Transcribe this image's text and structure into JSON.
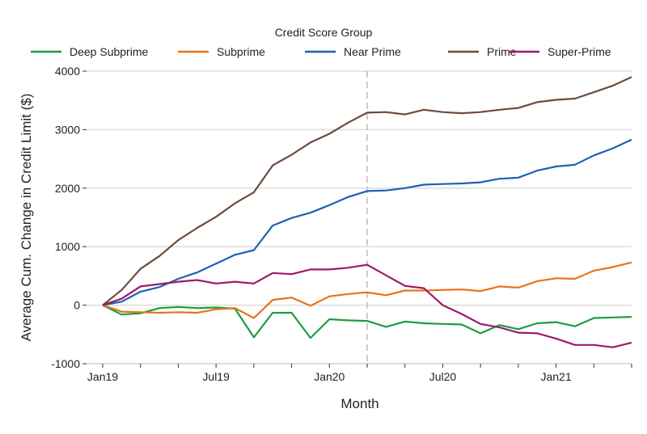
{
  "chart_data": {
    "type": "line",
    "title": "",
    "xlabel": "Month",
    "ylabel": "Average Cum. Change in Credit Limit ($)",
    "legend_title": "Credit Score Group",
    "legend_placement": "top",
    "grid": "horizontal",
    "ylim": [
      -1000,
      4000
    ],
    "yticks": [
      -1000,
      0,
      1000,
      2000,
      3000,
      4000
    ],
    "x": [
      "Jan19",
      "Feb19",
      "Mar19",
      "Apr19",
      "May19",
      "Jun19",
      "Jul19",
      "Aug19",
      "Sep19",
      "Oct19",
      "Nov19",
      "Dec19",
      "Jan20",
      "Feb20",
      "Mar20",
      "Apr20",
      "May20",
      "Jun20",
      "Jul20",
      "Aug20",
      "Sep20",
      "Oct20",
      "Nov20",
      "Dec20",
      "Jan21",
      "Feb21",
      "Mar21",
      "Apr21",
      "May21"
    ],
    "xtick_labels": [
      "Jan19",
      "Jul19",
      "Jan20",
      "Jul20",
      "Jan21"
    ],
    "reference_line_x": "Mar20",
    "series": [
      {
        "name": "Deep Subprime",
        "color": "#1a9e3f",
        "values": [
          0,
          -160,
          -140,
          -50,
          -30,
          -50,
          -40,
          -60,
          -550,
          -130,
          -130,
          -560,
          -240,
          -260,
          -270,
          -370,
          -280,
          -310,
          -320,
          -330,
          -480,
          -340,
          -410,
          -310,
          -290,
          -360,
          -220,
          -210,
          -200
        ]
      },
      {
        "name": "Subprime",
        "color": "#e8731a",
        "values": [
          0,
          -110,
          -120,
          -130,
          -120,
          -130,
          -70,
          -50,
          -220,
          90,
          130,
          -10,
          150,
          190,
          220,
          170,
          250,
          250,
          260,
          270,
          240,
          320,
          300,
          410,
          460,
          450,
          590,
          650,
          730
        ]
      },
      {
        "name": "Near Prime",
        "color": "#1f5fb5",
        "values": [
          0,
          60,
          230,
          310,
          450,
          560,
          710,
          860,
          940,
          1360,
          1490,
          1580,
          1710,
          1850,
          1950,
          1960,
          2000,
          2060,
          2070,
          2080,
          2100,
          2160,
          2180,
          2300,
          2370,
          2400,
          2560,
          2680,
          2830
        ]
      },
      {
        "name": "Prime",
        "color": "#6b4c3b",
        "values": [
          0,
          260,
          620,
          840,
          1110,
          1320,
          1510,
          1740,
          1930,
          2390,
          2570,
          2780,
          2930,
          3120,
          3290,
          3300,
          3260,
          3340,
          3300,
          3280,
          3300,
          3340,
          3370,
          3470,
          3510,
          3530,
          3640,
          3750,
          3900
        ]
      },
      {
        "name": "Super-Prime",
        "color": "#9c1a6b",
        "values": [
          0,
          110,
          320,
          360,
          400,
          430,
          370,
          400,
          370,
          550,
          530,
          610,
          610,
          640,
          690,
          510,
          330,
          290,
          0,
          -150,
          -320,
          -380,
          -470,
          -480,
          -570,
          -680,
          -680,
          -720,
          -640
        ]
      }
    ]
  }
}
